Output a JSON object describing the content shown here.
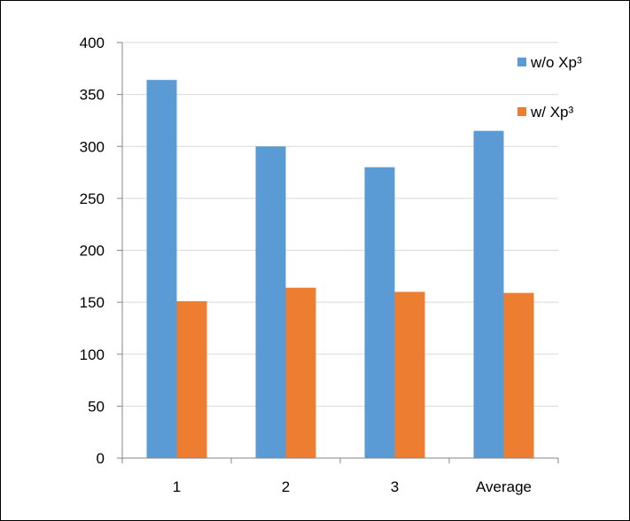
{
  "chart_data": {
    "type": "bar",
    "categories": [
      "1",
      "2",
      "3",
      "Average"
    ],
    "series": [
      {
        "name": "w/o Xp³",
        "values": [
          364,
          300,
          280,
          315
        ],
        "color": "#5b9bd5"
      },
      {
        "name": "w/ Xp³",
        "values": [
          151,
          164,
          160,
          159
        ],
        "color": "#ed7d31"
      }
    ],
    "title": "",
    "xlabel": "",
    "ylabel": "",
    "ylim": [
      0,
      400
    ],
    "yticks": [
      "0",
      "50",
      "100",
      "150",
      "200",
      "250",
      "300",
      "350",
      "400"
    ],
    "grid": true,
    "legend_position": "top-right"
  }
}
